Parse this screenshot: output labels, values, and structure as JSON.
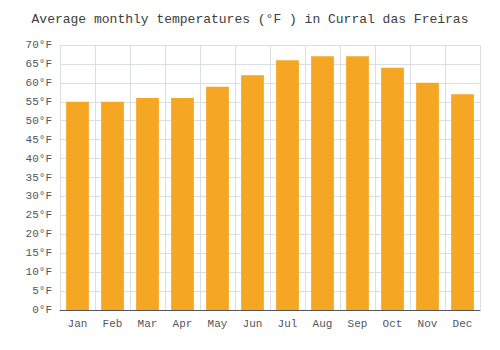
{
  "chart_data": {
    "type": "bar",
    "title": "Average monthly temperatures (°F ) in Curral das Freiras",
    "categories": [
      "Jan",
      "Feb",
      "Mar",
      "Apr",
      "May",
      "Jun",
      "Jul",
      "Aug",
      "Sep",
      "Oct",
      "Nov",
      "Dec"
    ],
    "values": [
      55,
      55,
      56,
      56,
      59,
      62,
      66,
      67,
      67,
      64,
      60,
      57
    ],
    "color": "#F5A623",
    "ylim": [
      0,
      70
    ],
    "yticks": [
      {
        "value": 0,
        "label": "0°F"
      },
      {
        "value": 5,
        "label": "5°F"
      },
      {
        "value": 10,
        "label": "10°F"
      },
      {
        "value": 15,
        "label": "15°F"
      },
      {
        "value": 20,
        "label": "20°F"
      },
      {
        "value": 25,
        "label": "25°F"
      },
      {
        "value": 30,
        "label": "30°F"
      },
      {
        "value": 35,
        "label": "35°F"
      },
      {
        "value": 40,
        "label": "40°F"
      },
      {
        "value": 45,
        "label": "45°F"
      },
      {
        "value": 50,
        "label": "50°F"
      },
      {
        "value": 55,
        "label": "55°F"
      },
      {
        "value": 60,
        "label": "60°F"
      },
      {
        "value": 65,
        "label": "65°F"
      },
      {
        "value": 70,
        "label": "70°F"
      }
    ],
    "grid": true
  }
}
